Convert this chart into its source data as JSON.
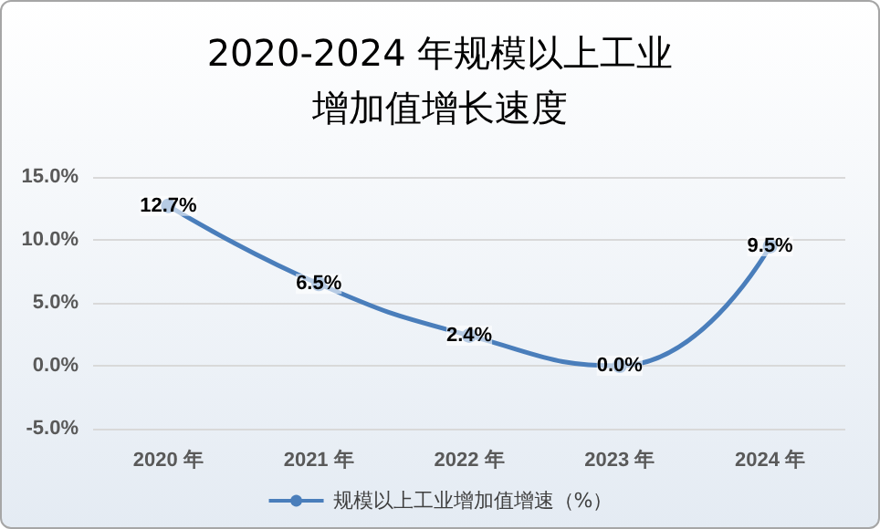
{
  "chart_data": {
    "type": "line",
    "title": "2020-2024 年规模以上工业增加值增长速度",
    "categories": [
      "2020 年",
      "2021 年",
      "2022 年",
      "2023 年",
      "2024 年"
    ],
    "series": [
      {
        "name": "规模以上工业增加值增速（%）",
        "color": "#4a7ebb",
        "values": [
          12.7,
          6.5,
          2.4,
          0.0,
          9.5
        ],
        "value_labels": [
          "12.7%",
          "6.5%",
          "2.4%",
          "0.0%",
          "9.5%"
        ]
      }
    ],
    "ylim": [
      -5,
      15
    ],
    "yticks": [
      {
        "value": -5,
        "label": "-5.0%"
      },
      {
        "value": 0,
        "label": "0.0%"
      },
      {
        "value": 5,
        "label": "5.0%"
      },
      {
        "value": 10,
        "label": "10.0%"
      },
      {
        "value": 15,
        "label": "15.0%"
      }
    ],
    "grid": "y",
    "legend": "bottom",
    "marker": "circle",
    "line_style": "solid"
  }
}
